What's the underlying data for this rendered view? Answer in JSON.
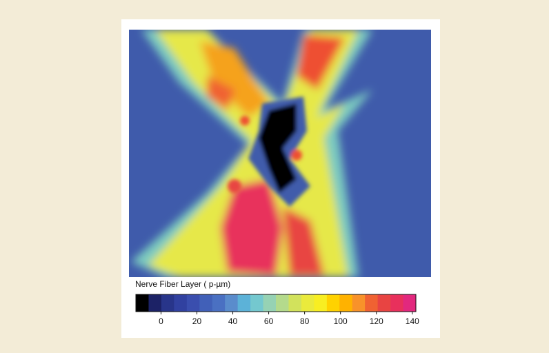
{
  "chart_data": {
    "type": "colorbar",
    "label": "Nerve Fiber Layer ( p-µm)",
    "lim": [
      -14,
      142
    ],
    "ticks": [
      0,
      20,
      40,
      60,
      80,
      100,
      120,
      140
    ],
    "colors": [
      "#000000",
      "#1c2266",
      "#28358a",
      "#3141a0",
      "#3a4eae",
      "#4160b8",
      "#4a70c2",
      "#5a8ccc",
      "#5cb2d8",
      "#74c8cf",
      "#96d2b4",
      "#b4da8c",
      "#d2e25c",
      "#eaea3c",
      "#f8ee22",
      "#ffd200",
      "#ffb200",
      "#f8922a",
      "#f06232",
      "#e84442",
      "#e8305c",
      "#e2287e"
    ]
  }
}
